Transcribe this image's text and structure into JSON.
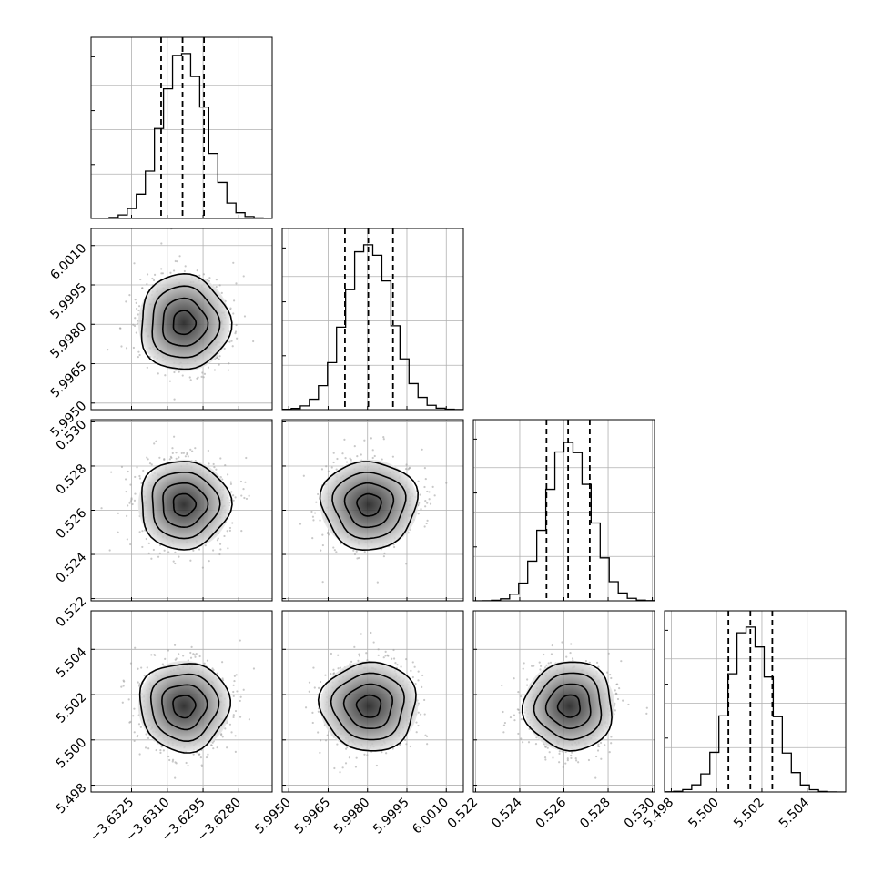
{
  "chart_data": {
    "type": "corner",
    "grid": true,
    "parameters": [
      {
        "lim": [
          -3.6342,
          -3.6266
        ],
        "ticks": [
          -3.6325,
          -3.631,
          -3.6295,
          -3.628
        ],
        "tick_labels": [
          "−3.6325",
          "−3.6310",
          "−3.6295",
          "−3.6280"
        ],
        "mean": -3.6303,
        "sd": 0.00092,
        "quantiles": [
          -3.63126,
          -3.63036,
          -3.62946
        ],
        "hist_peak_fraction": 0.91
      },
      {
        "lim": [
          5.99475,
          6.00165
        ],
        "ticks": [
          5.995,
          5.9965,
          5.998,
          5.9995,
          6.001
        ],
        "tick_labels": [
          "5.9950",
          "5.9965",
          "5.9980",
          "5.9995",
          "6.0010"
        ],
        "mean": 5.99806,
        "sd": 0.00089,
        "quantiles": [
          5.99714,
          5.99803,
          5.99897
        ],
        "hist_peak_fraction": 0.91
      },
      {
        "lim": [
          0.5219,
          0.5301
        ],
        "ticks": [
          0.522,
          0.524,
          0.526,
          0.528,
          0.53
        ],
        "tick_labels": [
          "0.522",
          "0.524",
          "0.526",
          "0.528",
          "0.530"
        ],
        "mean": 0.52625,
        "sd": 0.00098,
        "quantiles": [
          0.52521,
          0.52619,
          0.52717
        ],
        "hist_peak_fraction": 0.91
      },
      {
        "lim": [
          5.4977,
          5.5057
        ],
        "ticks": [
          5.498,
          5.5,
          5.502,
          5.504
        ],
        "tick_labels": [
          "5.498",
          "5.500",
          "5.502",
          "5.504"
        ],
        "mean": 5.50149,
        "sd": 0.00096,
        "quantiles": [
          5.50052,
          5.50149,
          5.50246
        ],
        "hist_peak_fraction": 0.91
      }
    ],
    "contour_levels_sigma": [
      0.5,
      1.0,
      1.5,
      2.0
    ],
    "line_color": "#000000",
    "grid_color": "#b0b0b0",
    "scatter_color": "#9a9a9a"
  }
}
